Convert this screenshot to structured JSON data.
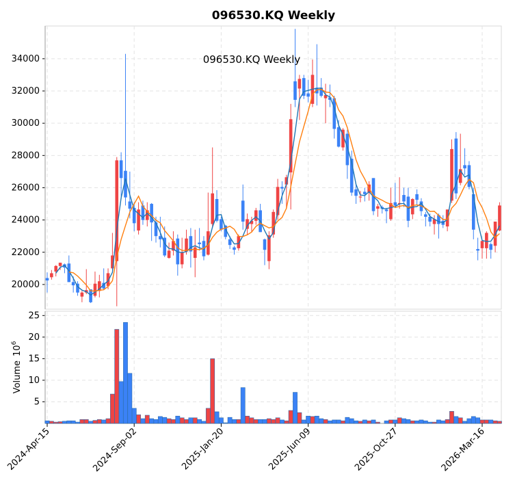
{
  "chart_data": {
    "type": "candlestick",
    "title": "096530.KQ  Weekly",
    "inner_title": "096530.KQ  Weekly",
    "ylabel_volume": "Volume",
    "ylabel_volume_exp": "10",
    "ylabel_volume_pow": "6",
    "price_ylim": [
      18470,
      36030
    ],
    "volume_ylim": [
      0,
      26
    ],
    "price_yticks": [
      20000,
      22000,
      24000,
      26000,
      28000,
      30000,
      32000,
      34000
    ],
    "volume_yticks": [
      5,
      10,
      15,
      20,
      25
    ],
    "xticks": [
      {
        "index": 0,
        "label": "2024-Apr-15"
      },
      {
        "index": 20,
        "label": "2024-Sep-02"
      },
      {
        "index": 40,
        "label": "2025-Jan-20"
      },
      {
        "index": 60,
        "label": "2025-Jun-09"
      },
      {
        "index": 80,
        "label": "2025-Oct-27"
      },
      {
        "index": 100,
        "label": "2026-Mar-16"
      }
    ],
    "grid": true,
    "colors": {
      "up": "#ef4444",
      "down": "#3b82f6",
      "ma_short": "#1f77b4",
      "ma_long": "#ff7f0e"
    },
    "ma_windows": [
      3,
      6
    ],
    "ohlc": [
      [
        20400,
        20750,
        19500,
        20250
      ],
      [
        20450,
        20900,
        20300,
        20700
      ],
      [
        20800,
        21200,
        20500,
        21150
      ],
      [
        21150,
        21350,
        20900,
        21350
      ],
      [
        21250,
        21300,
        20700,
        21050
      ],
      [
        21300,
        21800,
        20150,
        20150
      ],
      [
        20150,
        20500,
        19500,
        19950
      ],
      [
        20050,
        20200,
        19300,
        19500
      ],
      [
        19250,
        19600,
        18900,
        19500
      ],
      [
        19500,
        20950,
        19400,
        19650
      ],
      [
        19700,
        19700,
        18850,
        18900
      ],
      [
        19300,
        20800,
        19200,
        20050
      ],
      [
        19600,
        20600,
        19200,
        20200
      ],
      [
        20100,
        21000,
        19650,
        19750
      ],
      [
        19900,
        21000,
        19700,
        20700
      ],
      [
        21000,
        23200,
        20900,
        21800
      ],
      [
        21450,
        27900,
        18650,
        27700
      ],
      [
        27700,
        28200,
        25300,
        26600
      ],
      [
        27050,
        34300,
        24900,
        25400
      ],
      [
        25150,
        27000,
        24100,
        24700
      ],
      [
        24750,
        25100,
        23300,
        23800
      ],
      [
        23350,
        25100,
        23100,
        24650
      ],
      [
        24900,
        25200,
        23700,
        24000
      ],
      [
        24000,
        25100,
        23600,
        24600
      ],
      [
        25000,
        25050,
        22700,
        23850
      ],
      [
        23850,
        24200,
        22600,
        23000
      ],
      [
        23000,
        24200,
        22300,
        22800
      ],
      [
        22900,
        23600,
        21700,
        21800
      ],
      [
        21650,
        22600,
        21600,
        22100
      ],
      [
        22100,
        23300,
        21800,
        22700
      ],
      [
        22850,
        23100,
        20550,
        21250
      ],
      [
        21250,
        22900,
        21000,
        22000
      ],
      [
        22050,
        23400,
        21850,
        22850
      ],
      [
        23000,
        23500,
        21050,
        22050
      ],
      [
        21650,
        23400,
        20450,
        22300
      ],
      [
        22600,
        23500,
        22100,
        22500
      ],
      [
        22700,
        23000,
        21500,
        21750
      ],
      [
        21850,
        25700,
        21800,
        23300
      ],
      [
        23750,
        28500,
        23500,
        25650
      ],
      [
        25300,
        25850,
        23850,
        23950
      ],
      [
        24050,
        24200,
        23300,
        23400
      ],
      [
        23650,
        23700,
        22800,
        22950
      ],
      [
        22800,
        23000,
        22200,
        22450
      ],
      [
        22300,
        22400,
        21850,
        22150
      ],
      [
        22250,
        23100,
        22100,
        23000
      ],
      [
        25200,
        26200,
        23400,
        23900
      ],
      [
        23450,
        24400,
        23050,
        24050
      ],
      [
        23750,
        24200,
        23250,
        23950
      ],
      [
        23950,
        24750,
        23700,
        24600
      ],
      [
        24600,
        25000,
        23250,
        23250
      ],
      [
        22800,
        22850,
        21200,
        22150
      ],
      [
        21450,
        23300,
        20950,
        23050
      ],
      [
        23100,
        24650,
        22900,
        24500
      ],
      [
        24300,
        26550,
        24000,
        26050
      ],
      [
        26050,
        26400,
        25000,
        25950
      ],
      [
        26200,
        26800,
        24700,
        26650
      ],
      [
        26950,
        31200,
        24650,
        30250
      ],
      [
        32600,
        35850,
        31000,
        31450
      ],
      [
        32150,
        33000,
        30200,
        32750
      ],
      [
        32800,
        33000,
        31500,
        31700
      ],
      [
        31850,
        32700,
        31300,
        31650
      ],
      [
        31200,
        33950,
        31000,
        33000
      ],
      [
        32200,
        34900,
        31100,
        31850
      ],
      [
        32200,
        32800,
        31600,
        31700
      ],
      [
        31550,
        32450,
        30000,
        31750
      ],
      [
        31600,
        32400,
        31000,
        31450
      ],
      [
        31550,
        31700,
        29050,
        29650
      ],
      [
        29750,
        30200,
        28500,
        28550
      ],
      [
        28500,
        29700,
        28300,
        29600
      ],
      [
        29350,
        29600,
        26550,
        27400
      ],
      [
        27800,
        28300,
        25500,
        25700
      ],
      [
        25900,
        26200,
        25000,
        25500
      ],
      [
        25400,
        25800,
        25100,
        25450
      ],
      [
        25750,
        26000,
        25150,
        25600
      ],
      [
        25700,
        26400,
        25200,
        26200
      ],
      [
        26600,
        26600,
        24300,
        24550
      ],
      [
        24700,
        25000,
        24200,
        24850
      ],
      [
        24800,
        24900,
        24400,
        24700
      ],
      [
        24650,
        24750,
        23800,
        24550
      ],
      [
        24050,
        26000,
        23950,
        25050
      ],
      [
        25100,
        26300,
        24800,
        24900
      ],
      [
        25000,
        26650,
        24700,
        25050
      ],
      [
        25550,
        26000,
        24800,
        25150
      ],
      [
        25450,
        26000,
        23550,
        23950
      ],
      [
        24350,
        25350,
        24050,
        25300
      ],
      [
        25600,
        25900,
        24950,
        25250
      ],
      [
        25150,
        25350,
        24250,
        24550
      ],
      [
        24350,
        24500,
        23600,
        24200
      ],
      [
        24200,
        24400,
        23600,
        23900
      ],
      [
        23750,
        24300,
        23100,
        24050
      ],
      [
        24300,
        24400,
        22850,
        23750
      ],
      [
        23950,
        24300,
        23500,
        23700
      ],
      [
        23600,
        24650,
        23300,
        24650
      ],
      [
        25200,
        29000,
        25050,
        28400
      ],
      [
        29050,
        29450,
        25300,
        25650
      ],
      [
        26300,
        29350,
        26150,
        27150
      ],
      [
        27400,
        28450,
        26800,
        27200
      ],
      [
        27400,
        27650,
        25900,
        26050
      ],
      [
        25600,
        26000,
        22800,
        23400
      ],
      [
        22200,
        22900,
        21500,
        22100
      ],
      [
        22250,
        22700,
        21600,
        22700
      ],
      [
        22250,
        23300,
        21600,
        23200
      ],
      [
        22500,
        22600,
        21600,
        22150
      ],
      [
        22400,
        23900,
        22000,
        23900
      ],
      [
        23350,
        25100,
        23300,
        24900
      ]
    ],
    "volume": [
      0.6,
      0.5,
      0.3,
      0.4,
      0.5,
      0.6,
      0.6,
      0.3,
      0.9,
      0.9,
      0.5,
      0.7,
      0.9,
      0.8,
      1.1,
      6.8,
      21.8,
      9.7,
      23.4,
      11.6,
      3.5,
      2.0,
      1.1,
      1.9,
      1.1,
      0.9,
      1.6,
      1.4,
      1.1,
      0.9,
      1.7,
      1.3,
      0.9,
      1.3,
      1.3,
      0.9,
      0.5,
      3.5,
      15.0,
      2.7,
      1.3,
      0.15,
      1.4,
      0.9,
      0.9,
      8.3,
      1.7,
      1.3,
      0.9,
      0.9,
      0.9,
      1.1,
      0.9,
      1.3,
      0.8,
      0.6,
      3.0,
      7.2,
      2.5,
      0.8,
      1.7,
      1.6,
      1.7,
      1.1,
      0.9,
      0.6,
      0.8,
      0.8,
      0.6,
      1.4,
      1.1,
      0.6,
      0.5,
      0.8,
      0.6,
      0.8,
      0.3,
      0.0,
      0.6,
      0.8,
      0.8,
      1.3,
      1.1,
      0.9,
      0.6,
      0.6,
      0.8,
      0.6,
      0.3,
      0.3,
      0.8,
      0.6,
      0.9,
      2.8,
      1.6,
      1.3,
      0.5,
      1.1,
      1.6,
      1.3,
      0.8,
      0.8,
      0.8,
      0.6,
      0.5
    ]
  }
}
